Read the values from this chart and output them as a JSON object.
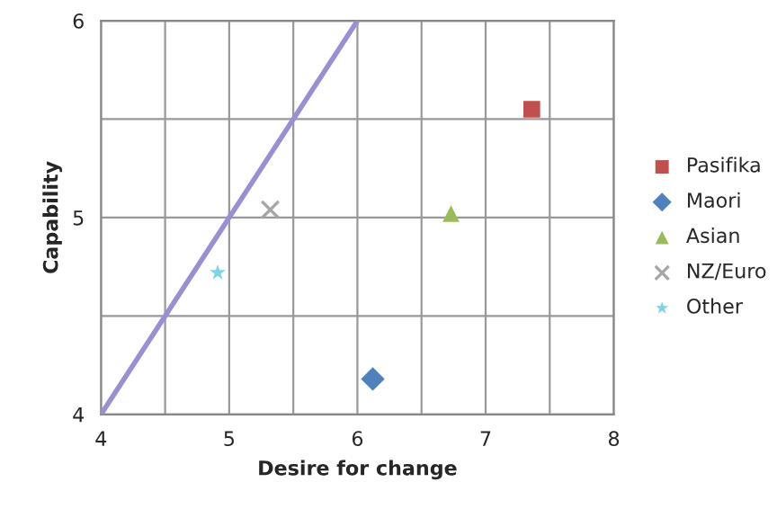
{
  "chart_data": {
    "type": "scatter",
    "xlabel": "Desire for change",
    "ylabel": "Capability",
    "xlim": [
      4,
      8
    ],
    "ylim": [
      4,
      6
    ],
    "xticks": [
      4,
      {
        "value": 4.5,
        "label": null
      },
      5,
      {
        "value": 5.5,
        "label": null
      },
      6,
      {
        "value": 6.5,
        "label": null
      },
      7,
      {
        "value": 7.5,
        "label": null
      },
      8
    ],
    "yticks": [
      4,
      {
        "value": 4.5,
        "label": null
      },
      5,
      {
        "value": 5.5,
        "label": null
      },
      6
    ],
    "grid": true,
    "legend": "right",
    "series": [
      {
        "type": "line",
        "color": "#9a8fd4",
        "x": [
          4,
          6
        ],
        "values": [
          4,
          6
        ],
        "marker": "none",
        "line_style": "solid"
      },
      {
        "name": "Pasifika",
        "color": "#c0504d",
        "x": [
          7.36
        ],
        "values": [
          5.55
        ],
        "marker": "square"
      },
      {
        "name": "Maori",
        "color": "#4f81bd",
        "x": [
          6.12
        ],
        "values": [
          4.18
        ],
        "marker": "diamond"
      },
      {
        "name": "Asian",
        "color": "#9bbb59",
        "x": [
          6.73
        ],
        "values": [
          5.02
        ],
        "marker": "triangle"
      },
      {
        "name": "NZ/Euro",
        "color": "#a6a6a6",
        "x": [
          5.32
        ],
        "values": [
          5.04
        ],
        "marker": "cross"
      },
      {
        "name": "Other",
        "color": "#7fd3e6",
        "x": [
          4.91
        ],
        "values": [
          4.72
        ],
        "marker": "star"
      }
    ]
  }
}
